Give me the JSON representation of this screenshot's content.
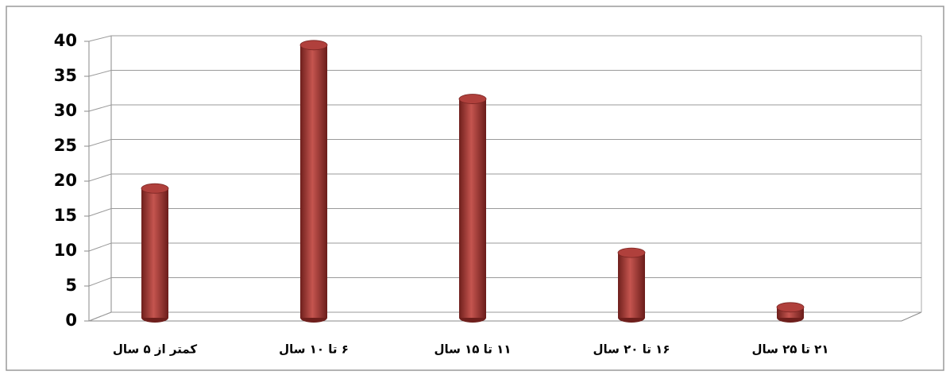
{
  "chart_data": {
    "type": "bar3d",
    "categories": [
      "کمتر از ۵ سال",
      "۶ تا ۱۰ سال",
      "۱۱ تا ۱۵ سال",
      "۱۶ تا ۲۰ سال",
      "۲۱ تا ۲۵ سال"
    ],
    "values": [
      18.5,
      39,
      31.3,
      9.3,
      1.5
    ],
    "color": "#b0403c",
    "ylim": [
      0,
      40
    ],
    "yticks": [
      0,
      5,
      10,
      15,
      20,
      25,
      30,
      35,
      40
    ],
    "grid": true
  }
}
